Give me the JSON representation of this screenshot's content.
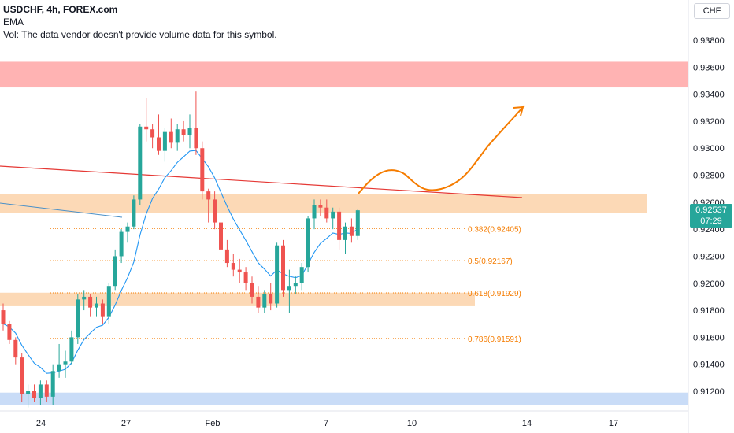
{
  "legend": {
    "symbol": "USDCHF, 4h, FOREX.com",
    "indicator": "EMA",
    "volume_note": "Vol: The data vendor doesn't provide volume data for this symbol."
  },
  "currency_button": "CHF",
  "last_price": {
    "value": "0.92537",
    "countdown": "07:29"
  },
  "colors": {
    "up": "#26a69a",
    "down": "#ef5350",
    "ema": "#2196f3",
    "resistance_zone": "#ffb3b3",
    "sr_zone": "#fcd9b6",
    "support_zone": "#c9dcf7",
    "fib": "#f57c00",
    "trendline": "#e53935"
  },
  "chart_data": {
    "type": "candlestick",
    "symbol": "USDCHF",
    "timeframe": "4h",
    "y_ticks": [
      "0.93800",
      "0.93600",
      "0.93400",
      "0.93200",
      "0.93000",
      "0.92800",
      "0.92600",
      "0.92400",
      "0.92200",
      "0.92000",
      "0.91800",
      "0.91600",
      "0.91400",
      "0.91200"
    ],
    "x_ticks": [
      "24",
      "27",
      "Feb",
      "7",
      "10",
      "14",
      "17"
    ],
    "ylim": [
      0.9107,
      0.9398
    ],
    "candles": [
      [
        0.918,
        0.9185,
        0.9165,
        0.917
      ],
      [
        0.917,
        0.9172,
        0.9155,
        0.9158
      ],
      [
        0.9158,
        0.916,
        0.914,
        0.9145
      ],
      [
        0.9145,
        0.9148,
        0.9112,
        0.9118
      ],
      [
        0.9118,
        0.9125,
        0.9108,
        0.912
      ],
      [
        0.912,
        0.9125,
        0.9112,
        0.9115
      ],
      [
        0.9115,
        0.9128,
        0.911,
        0.9125
      ],
      [
        0.9125,
        0.9128,
        0.9112,
        0.9116
      ],
      [
        0.9116,
        0.914,
        0.911,
        0.9135
      ],
      [
        0.9135,
        0.9155,
        0.913,
        0.914
      ],
      [
        0.914,
        0.915,
        0.913,
        0.9142
      ],
      [
        0.9142,
        0.9165,
        0.914,
        0.916
      ],
      [
        0.916,
        0.9192,
        0.9155,
        0.9188
      ],
      [
        0.9188,
        0.9195,
        0.918,
        0.919
      ],
      [
        0.919,
        0.9192,
        0.9175,
        0.9182
      ],
      [
        0.9182,
        0.919,
        0.9175,
        0.9185
      ],
      [
        0.9185,
        0.9188,
        0.917,
        0.9175
      ],
      [
        0.9175,
        0.92,
        0.917,
        0.9198
      ],
      [
        0.9198,
        0.9225,
        0.9195,
        0.922
      ],
      [
        0.922,
        0.924,
        0.9215,
        0.9238
      ],
      [
        0.9238,
        0.9245,
        0.923,
        0.9242
      ],
      [
        0.9242,
        0.9265,
        0.924,
        0.9262
      ],
      [
        0.9262,
        0.9318,
        0.9258,
        0.9316
      ],
      [
        0.9316,
        0.9337,
        0.9305,
        0.9314
      ],
      [
        0.9314,
        0.9318,
        0.93,
        0.9308
      ],
      [
        0.9308,
        0.9325,
        0.9295,
        0.9298
      ],
      [
        0.9298,
        0.9315,
        0.929,
        0.9312
      ],
      [
        0.9312,
        0.9322,
        0.93,
        0.9304
      ],
      [
        0.9304,
        0.9318,
        0.9298,
        0.9314
      ],
      [
        0.9314,
        0.932,
        0.9305,
        0.931
      ],
      [
        0.931,
        0.9325,
        0.93,
        0.9315
      ],
      [
        0.9315,
        0.9342,
        0.9295,
        0.93
      ],
      [
        0.93,
        0.9305,
        0.9262,
        0.9268
      ],
      [
        0.9268,
        0.927,
        0.9245,
        0.9262
      ],
      [
        0.9262,
        0.9268,
        0.924,
        0.9245
      ],
      [
        0.9245,
        0.925,
        0.9218,
        0.9225
      ],
      [
        0.9225,
        0.9232,
        0.9212,
        0.9215
      ],
      [
        0.9215,
        0.9222,
        0.9205,
        0.921
      ],
      [
        0.921,
        0.9218,
        0.92,
        0.9208
      ],
      [
        0.9208,
        0.9212,
        0.9195,
        0.92
      ],
      [
        0.92,
        0.9205,
        0.9185,
        0.919
      ],
      [
        0.919,
        0.9198,
        0.9178,
        0.9182
      ],
      [
        0.9182,
        0.9195,
        0.9178,
        0.9192
      ],
      [
        0.9192,
        0.92,
        0.918,
        0.9185
      ],
      [
        0.9185,
        0.923,
        0.9182,
        0.9228
      ],
      [
        0.9228,
        0.9232,
        0.919,
        0.9195
      ],
      [
        0.9195,
        0.921,
        0.9178,
        0.9198
      ],
      [
        0.9198,
        0.9205,
        0.9192,
        0.92
      ],
      [
        0.92,
        0.9215,
        0.9195,
        0.9212
      ],
      [
        0.9212,
        0.925,
        0.9208,
        0.9248
      ],
      [
        0.9248,
        0.9262,
        0.924,
        0.9258
      ],
      [
        0.9258,
        0.9262,
        0.925,
        0.9256
      ],
      [
        0.9256,
        0.9262,
        0.9245,
        0.9248
      ],
      [
        0.9248,
        0.9256,
        0.924,
        0.9253
      ],
      [
        0.9253,
        0.9256,
        0.9225,
        0.9232
      ],
      [
        0.9232,
        0.9245,
        0.9222,
        0.9242
      ],
      [
        0.9242,
        0.9248,
        0.923,
        0.9235
      ],
      [
        0.9235,
        0.9255,
        0.9232,
        0.9254
      ]
    ],
    "ema_label": "EMA",
    "zones": [
      {
        "name": "resistance-zone",
        "top": 0.9364,
        "bottom": 0.9345
      },
      {
        "name": "sr-zone-upper",
        "top": 0.9266,
        "bottom": 0.9252
      },
      {
        "name": "sr-zone-lower",
        "top": 0.9193,
        "bottom": 0.9183
      },
      {
        "name": "support-zone",
        "top": 0.9119,
        "bottom": 0.911
      }
    ],
    "fib_levels": [
      {
        "label": "0.382(0.92405)",
        "value": 0.92405
      },
      {
        "label": "0.5(0.92167)",
        "value": 0.92167
      },
      {
        "label": "0.618(0.91929)",
        "value": 0.91929
      },
      {
        "label": "0.786(0.91591)",
        "value": 0.91591
      }
    ]
  }
}
